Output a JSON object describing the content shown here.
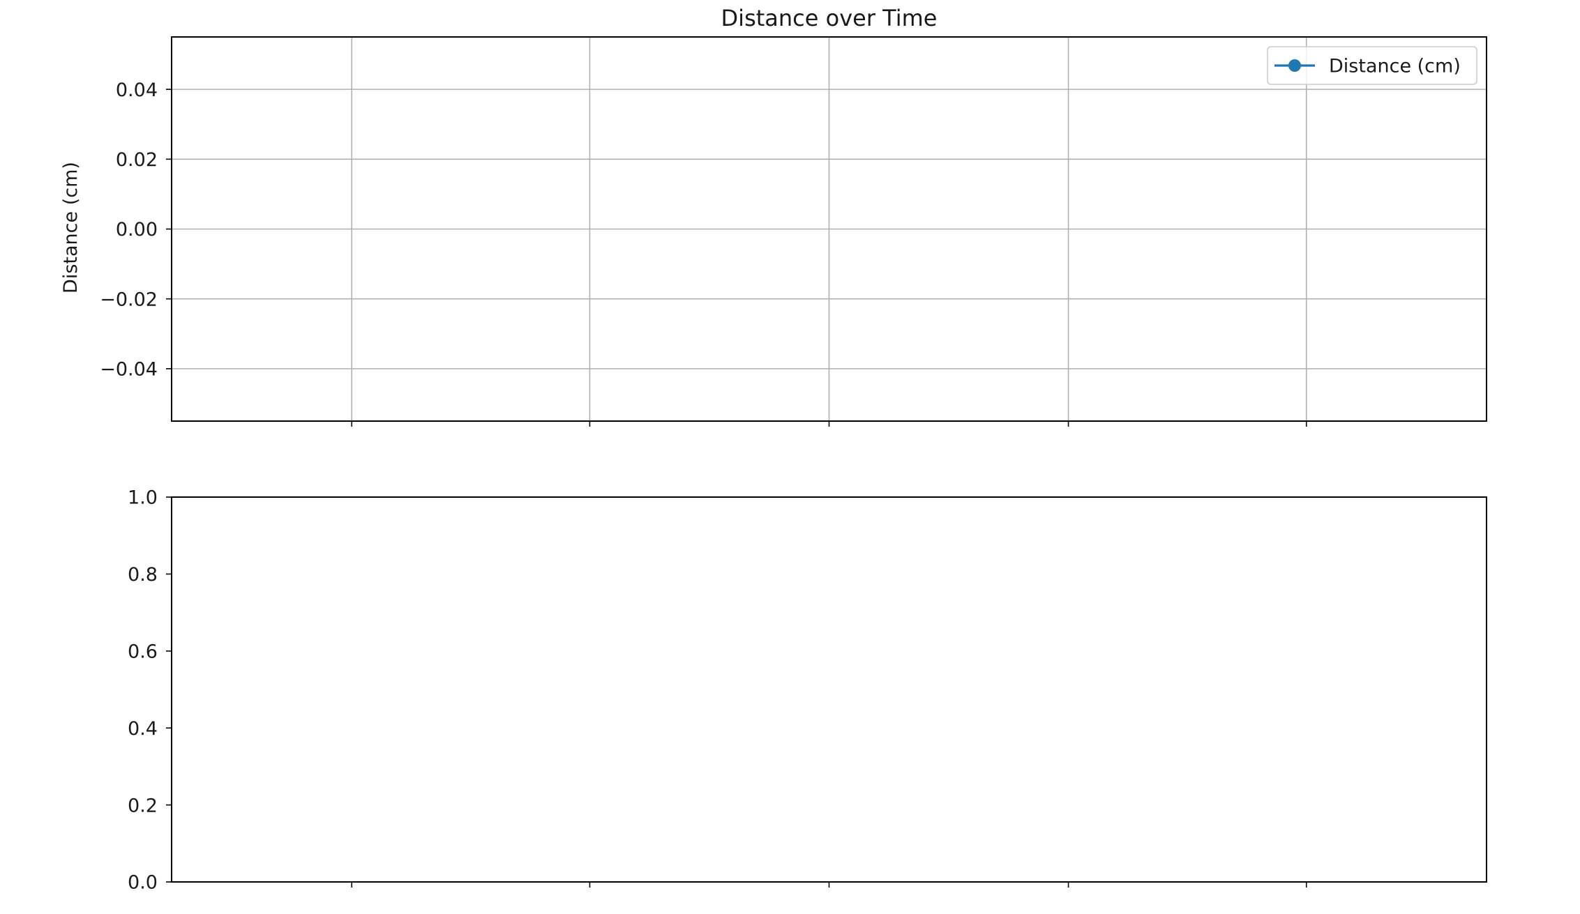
{
  "chart_data": [
    {
      "type": "line",
      "title": "Distance over Time",
      "xlabel": "",
      "ylabel": "Distance (cm)",
      "ylim": [
        -0.055,
        0.055
      ],
      "yticks": [
        0.04,
        0.02,
        0.0,
        -0.02,
        -0.04
      ],
      "ytick_labels": [
        "0.04",
        "0.02",
        "0.00",
        "−0.02",
        "−0.04"
      ],
      "xtick_count": 5,
      "xtick_labels": [],
      "grid": true,
      "legend": "top-right",
      "series": [
        {
          "name": "Distance (cm)",
          "color": "#1f77b4",
          "marker": "circle",
          "x": [],
          "y": []
        }
      ]
    },
    {
      "type": "line",
      "title": "",
      "xlabel": "",
      "ylabel": "",
      "ylim": [
        0.0,
        1.0
      ],
      "yticks": [
        1.0,
        0.8,
        0.6,
        0.4,
        0.2,
        0.0
      ],
      "ytick_labels": [
        "1.0",
        "0.8",
        "0.6",
        "0.4",
        "0.2",
        "0.0"
      ],
      "xtick_count": 5,
      "xtick_labels": [],
      "grid": false,
      "series": []
    }
  ]
}
